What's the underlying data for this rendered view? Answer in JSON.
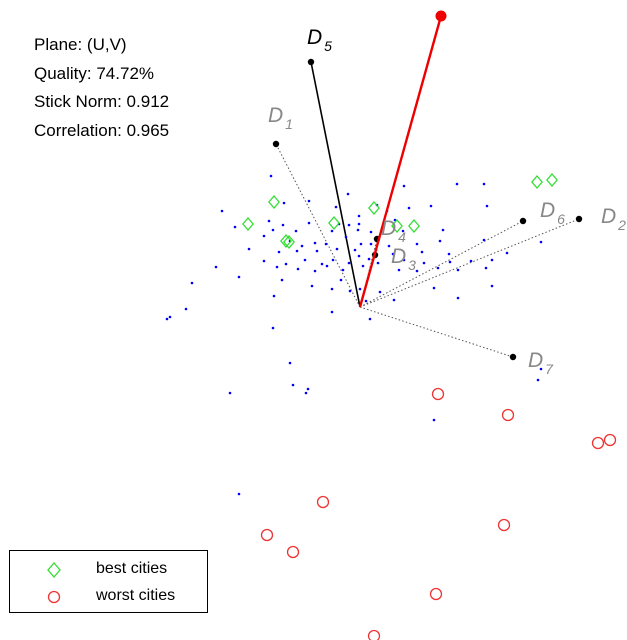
{
  "info": {
    "plane": "Plane: (U,V)",
    "quality": "Quality: 74.72%",
    "stick_norm": "Stick Norm: 0.912",
    "correlation": "Correlation: 0.965"
  },
  "colors": {
    "points": "#0000ff",
    "best": "#33dd33",
    "worst": "#ee3333",
    "stick": "#ee0000",
    "axis_active": "#000000",
    "axis_inactive": "#888888"
  },
  "legend": {
    "items": [
      {
        "label": "best cities",
        "marker": "diamond",
        "color": "#33dd33"
      },
      {
        "label": "worst cities",
        "marker": "circle",
        "color": "#ee3333"
      }
    ]
  },
  "chart_data": {
    "type": "scatter",
    "title": "",
    "xlabel": "",
    "ylabel": "",
    "grid": false,
    "legend_position": "bottom-left",
    "xlim": [
      -360,
      267
    ],
    "ylim": [
      -333,
      307
    ],
    "origin": [
      0,
      0
    ],
    "stick": {
      "x": 81,
      "y": 291
    },
    "descriptors": [
      {
        "name": "D",
        "sub": "1",
        "x": -84,
        "y": 163,
        "style": "dotted",
        "color": "#888888"
      },
      {
        "name": "D",
        "sub": "2",
        "x": 219,
        "y": 88,
        "style": "dotted",
        "color": "#888888"
      },
      {
        "name": "D",
        "sub": "3",
        "x": 15,
        "y": 52,
        "style": "dotted",
        "color": "#888888"
      },
      {
        "name": "D",
        "sub": "4",
        "x": 17,
        "y": 68,
        "style": "dotted",
        "color": "#888888"
      },
      {
        "name": "D",
        "sub": "5",
        "x": -49,
        "y": 245,
        "style": "solid",
        "color": "#000000"
      },
      {
        "name": "D",
        "sub": "6",
        "x": 163,
        "y": 86,
        "style": "dotted",
        "color": "#888888"
      },
      {
        "name": "D",
        "sub": "7",
        "x": 153,
        "y": -50,
        "style": "dotted",
        "color": "#888888"
      }
    ],
    "series": [
      {
        "marker": "dot",
        "points": [
          [
            -89,
            131
          ],
          [
            44,
            121
          ],
          [
            97,
            123
          ],
          [
            124,
            123
          ],
          [
            -12,
            113
          ],
          [
            -51,
            106
          ],
          [
            -76,
            104
          ],
          [
            17,
            102
          ],
          [
            -24,
            100
          ],
          [
            27,
            96
          ],
          [
            49,
            99
          ],
          [
            71,
            101
          ],
          [
            127,
            101
          ],
          [
            -138,
            96
          ],
          [
            -1,
            91
          ],
          [
            -91,
            86
          ],
          [
            -77,
            82
          ],
          [
            -51,
            84
          ],
          [
            -21,
            83
          ],
          [
            -11,
            82
          ],
          [
            -1,
            83
          ],
          [
            35,
            87
          ],
          [
            -125,
            80
          ],
          [
            -87,
            77
          ],
          [
            -64,
            76
          ],
          [
            -28,
            76
          ],
          [
            -2,
            77
          ],
          [
            11,
            75
          ],
          [
            43,
            76
          ],
          [
            83,
            77
          ],
          [
            -96,
            71
          ],
          [
            -70,
            66
          ],
          [
            -45,
            64
          ],
          [
            -58,
            61
          ],
          [
            -34,
            63
          ],
          [
            -14,
            70
          ],
          [
            1,
            63
          ],
          [
            11,
            63
          ],
          [
            29,
            61
          ],
          [
            57,
            63
          ],
          [
            80,
            66
          ],
          [
            124,
            67
          ],
          [
            181,
            65
          ],
          [
            -111,
            58
          ],
          [
            -81,
            55
          ],
          [
            -63,
            56
          ],
          [
            -43,
            56
          ],
          [
            -23,
            58
          ],
          [
            -5,
            57
          ],
          [
            16,
            57
          ],
          [
            33,
            53
          ],
          [
            62,
            55
          ],
          [
            89,
            53
          ],
          [
            -96,
            46
          ],
          [
            -74,
            43
          ],
          [
            -55,
            47
          ],
          [
            -38,
            43
          ],
          [
            -27,
            47
          ],
          [
            -11,
            44
          ],
          [
            -1,
            51
          ],
          [
            9,
            48
          ],
          [
            18,
            44
          ],
          [
            44,
            47
          ],
          [
            64,
            44
          ],
          [
            90,
            45
          ],
          [
            111,
            46
          ],
          [
            132,
            47
          ],
          [
            147,
            54
          ],
          [
            -144,
            40
          ],
          [
            -83,
            40
          ],
          [
            -62,
            38
          ],
          [
            -45,
            36
          ],
          [
            -33,
            41
          ],
          [
            -17,
            37
          ],
          [
            3,
            41
          ],
          [
            39,
            37
          ],
          [
            57,
            36
          ],
          [
            78,
            39
          ],
          [
            98,
            37
          ],
          [
            126,
            39
          ],
          [
            -121,
            30
          ],
          [
            -78,
            27
          ],
          [
            -48,
            21
          ],
          [
            -19,
            27
          ],
          [
            -10,
            16
          ],
          [
            0,
            18
          ],
          [
            20,
            15
          ],
          [
            74,
            19
          ],
          [
            132,
            21
          ],
          [
            -168,
            24
          ],
          [
            -86,
            11
          ],
          [
            -28,
            18
          ],
          [
            6,
            6
          ],
          [
            34,
            7
          ],
          [
            98,
            9
          ],
          [
            -174,
            -2
          ],
          [
            -28,
            -5
          ],
          [
            10,
            -12
          ],
          [
            -87,
            -21
          ],
          [
            -190,
            -10
          ],
          [
            -193,
            -12
          ],
          [
            -70,
            -56
          ],
          [
            -67,
            -78
          ],
          [
            -52,
            -82
          ],
          [
            -54,
            -86
          ],
          [
            -130,
            -86
          ],
          [
            -121,
            -187
          ],
          [
            74,
            -113
          ],
          [
            181,
            -62
          ],
          [
            178,
            -73
          ]
        ]
      },
      {
        "name": "best cities",
        "marker": "diamond",
        "points": [
          [
            177,
            125
          ],
          [
            192,
            127
          ],
          [
            -86,
            105
          ],
          [
            -112,
            83
          ],
          [
            14,
            99
          ],
          [
            -26,
            84
          ],
          [
            37,
            81
          ],
          [
            54,
            81
          ],
          [
            -71,
            65
          ],
          [
            -74,
            66
          ]
        ]
      },
      {
        "name": "worst cities",
        "marker": "circle",
        "points": [
          [
            78,
            -87
          ],
          [
            148,
            -108
          ],
          [
            238,
            -136
          ],
          [
            250,
            -133
          ],
          [
            -37,
            -195
          ],
          [
            144,
            -218
          ],
          [
            -93,
            -228
          ],
          [
            -67,
            -245
          ],
          [
            76,
            -287
          ],
          [
            14,
            -329
          ]
        ]
      }
    ]
  }
}
